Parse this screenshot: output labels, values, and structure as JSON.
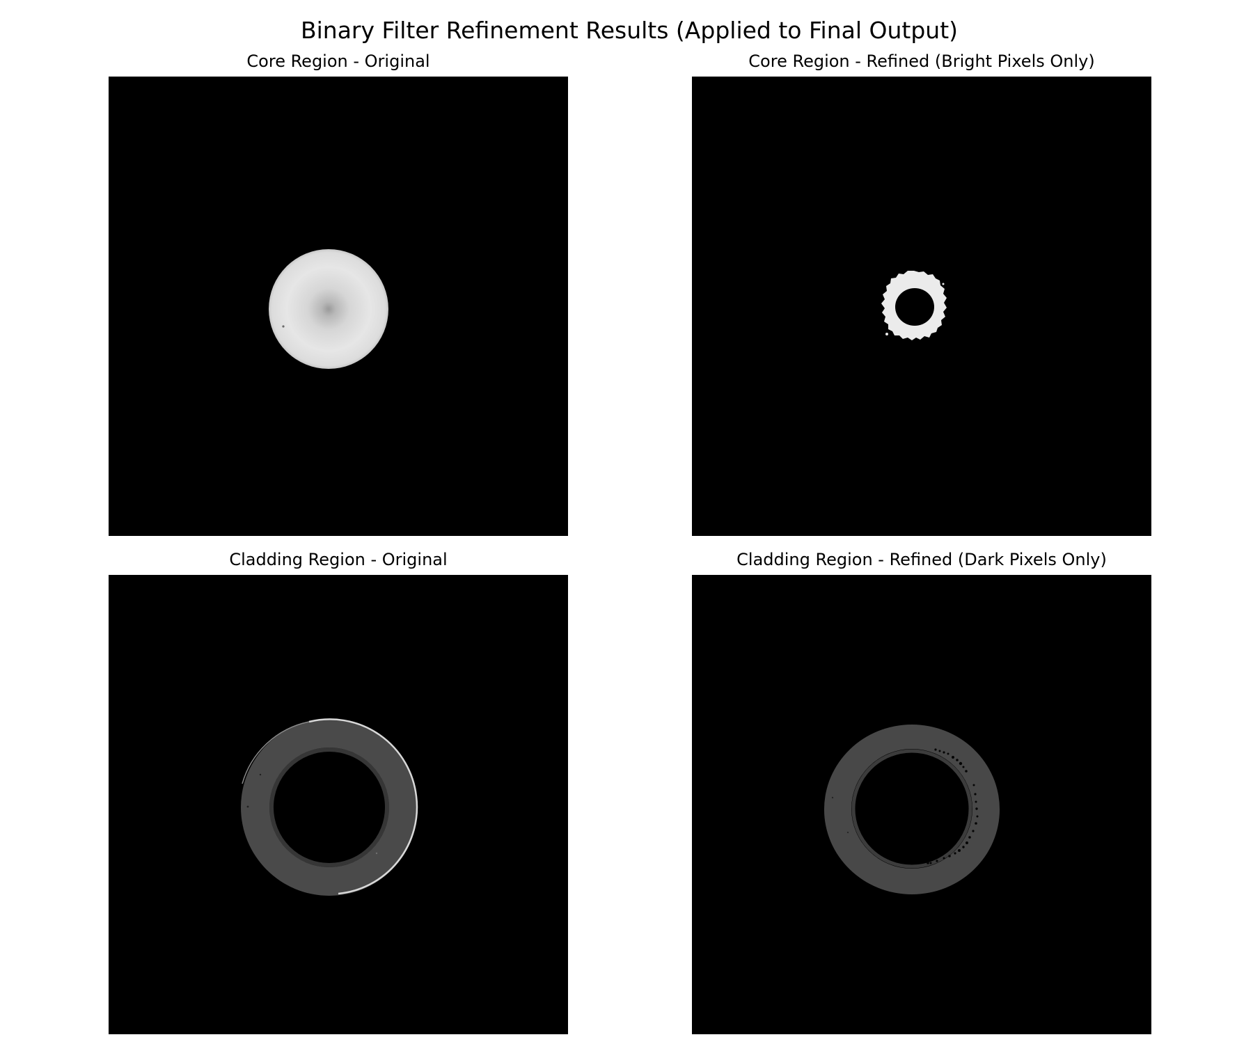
{
  "figure": {
    "title": "Binary Filter Refinement Results (Applied to Final Output)"
  },
  "panels": [
    {
      "title": "Core Region - Original"
    },
    {
      "title": "Core Region - Refined (Bright Pixels Only)"
    },
    {
      "title": "Cladding Region - Original"
    },
    {
      "title": "Cladding Region - Refined (Dark Pixels Only)"
    }
  ],
  "colors": {
    "background": "#000000",
    "core_bright": "#e6e6e6",
    "core_center": "#a8a8a8",
    "refined_core": "#ebebeb",
    "cladding_gray": "#4a4a4a",
    "cladding_edge": "#d0d0d0"
  }
}
